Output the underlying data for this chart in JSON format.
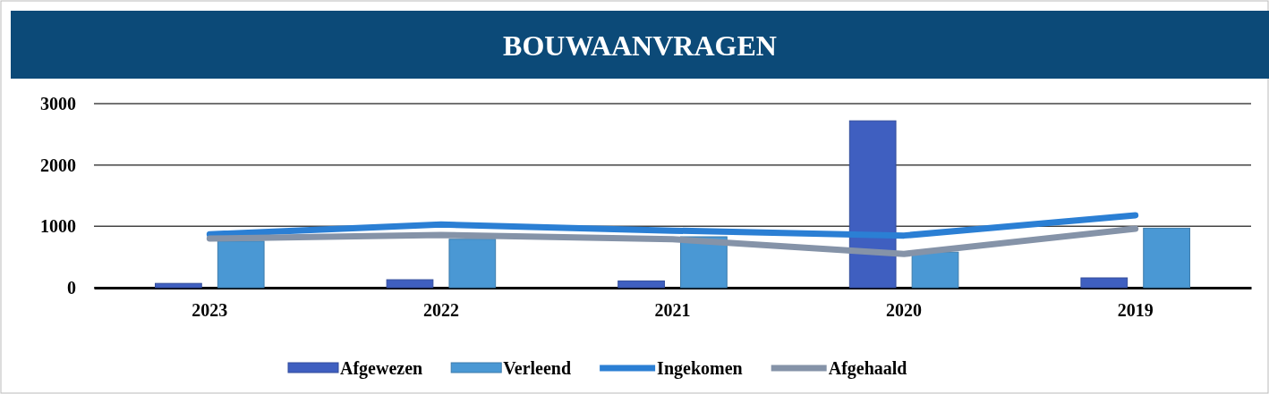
{
  "chart_data": {
    "type": "bar",
    "title": "BOUWAANVRAGEN",
    "categories": [
      "2023",
      "2022",
      "2021",
      "2020",
      "2019"
    ],
    "series": [
      {
        "name": "Afgewezen",
        "color": "#3f5fc0",
        "values": [
          70,
          130,
          110,
          2720,
          160
        ]
      },
      {
        "name": "Verleend",
        "color": "#4a98d4",
        "values": [
          760,
          790,
          830,
          580,
          970
        ]
      },
      {
        "name": "Ingekomen",
        "type": "line",
        "color": "#2b7fd4",
        "values": [
          870,
          1030,
          930,
          850,
          1180
        ]
      },
      {
        "name": "Afgehaald",
        "type": "line",
        "color": "#8593a8",
        "values": [
          800,
          860,
          790,
          550,
          960
        ]
      }
    ],
    "ylim": [
      0,
      3000
    ],
    "yticks": [
      0,
      1000,
      2000,
      3000
    ],
    "grid": "y",
    "legend": "bottom",
    "marker": "none"
  }
}
